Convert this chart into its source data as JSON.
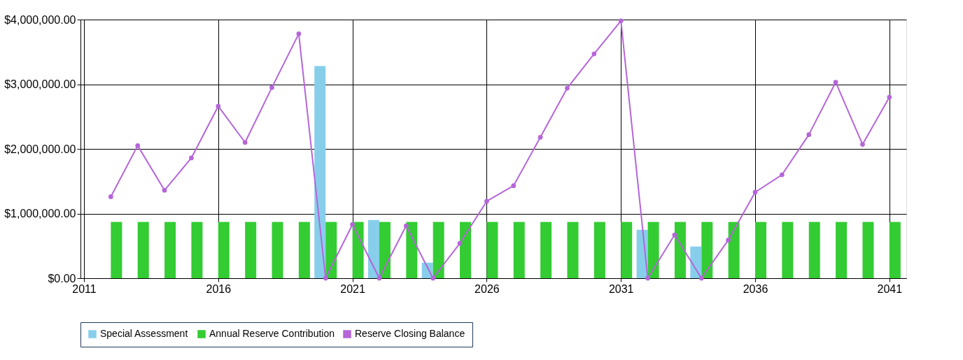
{
  "chart_data": {
    "type": "bar",
    "x": [
      2012,
      2013,
      2014,
      2015,
      2016,
      2017,
      2018,
      2019,
      2020,
      2021,
      2022,
      2023,
      2024,
      2025,
      2026,
      2027,
      2028,
      2029,
      2030,
      2031,
      2032,
      2033,
      2034,
      2035,
      2036,
      2037,
      2038,
      2039,
      2040,
      2041
    ],
    "series": [
      {
        "name": "Special Assessment",
        "color": "#87ceeb",
        "values": [
          null,
          null,
          null,
          null,
          null,
          null,
          null,
          null,
          3280000,
          null,
          900000,
          null,
          240000,
          null,
          null,
          null,
          null,
          null,
          null,
          null,
          750000,
          null,
          490000,
          null,
          null,
          null,
          null,
          null,
          null,
          null
        ]
      },
      {
        "name": "Annual Reserve Contribution",
        "color": "#33cc33",
        "values": [
          870000,
          870000,
          870000,
          870000,
          870000,
          870000,
          870000,
          870000,
          870000,
          870000,
          870000,
          870000,
          870000,
          870000,
          870000,
          870000,
          870000,
          870000,
          870000,
          870000,
          870000,
          870000,
          870000,
          870000,
          870000,
          870000,
          870000,
          870000,
          870000,
          870000
        ]
      },
      {
        "name": "Reserve Closing Balance",
        "type": "line",
        "color": "#b565d9",
        "values": [
          1260000,
          2050000,
          1360000,
          1860000,
          2660000,
          2100000,
          2950000,
          3780000,
          0,
          830000,
          0,
          810000,
          0,
          540000,
          1190000,
          1430000,
          2180000,
          2940000,
          3470000,
          3980000,
          0,
          670000,
          0,
          590000,
          1330000,
          1600000,
          2220000,
          3030000,
          2070000,
          2800000
        ]
      }
    ],
    "xlim": [
      2011,
      2041.5
    ],
    "xticks": [
      2011,
      2016,
      2021,
      2026,
      2031,
      2036,
      2041
    ],
    "ylim": [
      0,
      4000000
    ],
    "yticks": [
      {
        "value": 0,
        "label": "$0.00"
      },
      {
        "value": 1000000,
        "label": "$1,000,000.00"
      },
      {
        "value": 2000000,
        "label": "$2,000,000.00"
      },
      {
        "value": 3000000,
        "label": "$3,000,000.00"
      },
      {
        "value": 4000000,
        "label": "$4,000,000.00"
      }
    ],
    "grid": true,
    "legend": "bottom",
    "marker": "circle"
  }
}
